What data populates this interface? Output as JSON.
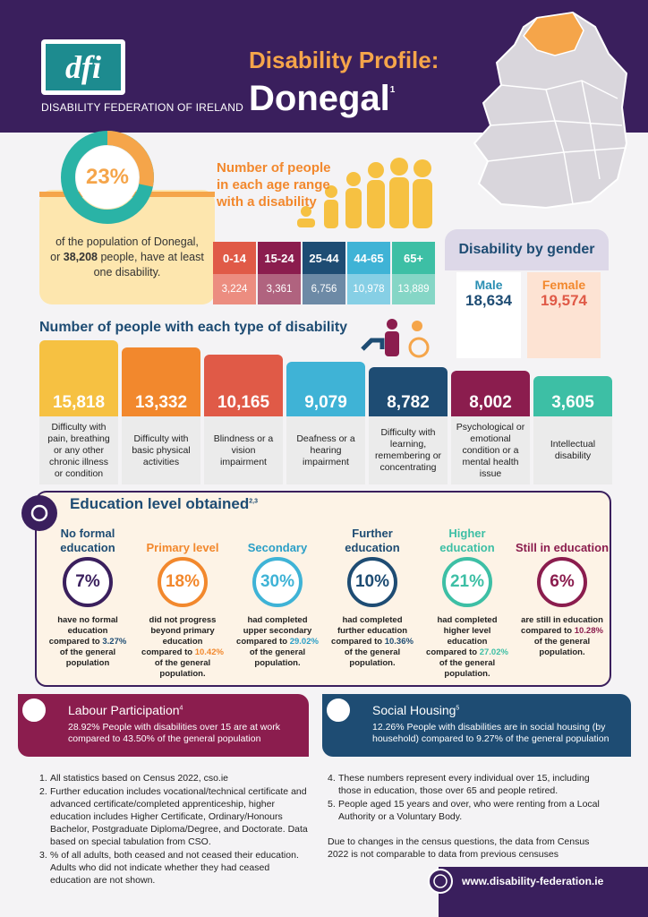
{
  "header": {
    "logo": "dfi",
    "org": "DISABILITY FEDERATION OF IRELAND",
    "title": "Disability Profile:",
    "county": "Donegal",
    "county_ref": "1"
  },
  "summary": {
    "percent": "23%",
    "text_1": "of the population of Donegal, or",
    "count": "38,208",
    "text_2": "people, have at least one disability."
  },
  "age_groups": {
    "title": "Number of people in each age range with a disability",
    "groups": [
      {
        "range": "0-14",
        "count": "3,224"
      },
      {
        "range": "15-24",
        "count": "3,361"
      },
      {
        "range": "25-44",
        "count": "6,756"
      },
      {
        "range": "44-65",
        "count": "10,978"
      },
      {
        "range": "65+",
        "count": "13,889"
      }
    ]
  },
  "gender": {
    "title": "Disability by gender",
    "male": {
      "label": "Male",
      "count": "18,634"
    },
    "female": {
      "label": "Female",
      "count": "19,574"
    }
  },
  "disability_types": {
    "title": "Number of people with each type of disability",
    "items": [
      {
        "count": "15,818",
        "label": "Difficulty with pain, breathing or any other chronic illness or condition"
      },
      {
        "count": "13,332",
        "label": "Difficulty with basic physical activities"
      },
      {
        "count": "10,165",
        "label": "Blindness or a vision impairment"
      },
      {
        "count": "9,079",
        "label": "Deafness or a hearing impairment"
      },
      {
        "count": "8,782",
        "label": "Difficulty with learning, remembering or concentrating"
      },
      {
        "count": "8,002",
        "label": "Psychological or emotional condition or a mental health issue"
      },
      {
        "count": "3,605",
        "label": "Intellectual disability"
      }
    ]
  },
  "education": {
    "title": "Education level obtained",
    "ref": "2,3",
    "levels": [
      {
        "name": "No formal education",
        "percent": "7%",
        "text_1": "have no formal education compared to",
        "general": "3.27%",
        "text_2": "of the general population"
      },
      {
        "name": "Primary level",
        "percent": "18%",
        "text_1": "did not progress beyond primary education compared to",
        "general": "10.42%",
        "text_2": "of the general population."
      },
      {
        "name": "Secondary",
        "percent": "30%",
        "text_1": "had completed upper secondary compared to",
        "general": "29.02%",
        "text_2": "of the general population."
      },
      {
        "name": "Further education",
        "percent": "10%",
        "text_1": "had completed further education compared to",
        "general": "10.36%",
        "text_2": "of the general population."
      },
      {
        "name": "Higher education",
        "percent": "21%",
        "text_1": "had completed higher level education compared to",
        "general": "27.02%",
        "text_2": "of the general population."
      },
      {
        "name": "Still in education",
        "percent": "6%",
        "text_1": "are still in education compared to",
        "general": "10.28%",
        "text_2": "of the general population."
      }
    ]
  },
  "labour": {
    "title": "Labour Participation",
    "ref": "4",
    "text": "28.92% People with disabilities over 15 are at work compared to 43.50% of the general population"
  },
  "social_housing": {
    "title": "Social Housing",
    "ref": "5",
    "text": "12.26% People with disabilities are in social housing (by household) compared to 9.27% of the general population"
  },
  "notes": {
    "left": [
      {
        "num": "1.",
        "text": "All statistics based on Census 2022, cso.ie"
      },
      {
        "num": "2.",
        "text": "Further education includes vocational/technical certificate and advanced certificate/completed apprenticeship, higher education includes Higher Certificate, Ordinary/Honours Bachelor, Postgraduate Diploma/Degree, and Doctorate. Data based on special tabulation from CSO."
      },
      {
        "num": "3.",
        "text": "% of all adults, both ceased and not ceased their education. Adults who did not indicate whether they had ceased education are not shown."
      }
    ],
    "right": [
      {
        "num": "4.",
        "text": "These numbers represent every individual over 15, including those in education, those over 65 and people retired."
      },
      {
        "num": "5.",
        "text": "People aged 15 years and over, who were renting from a Local Authority or a Voluntary Body."
      }
    ],
    "closing": "Due to changes in the census questions, the data from Census 2022 is not comparable to data from previous censuses"
  },
  "footer": {
    "website": "www.disability-federation.ie"
  }
}
